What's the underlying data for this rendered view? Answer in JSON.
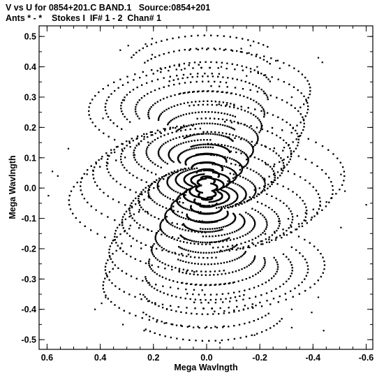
{
  "header": {
    "line1": "V vs U for 0854+201.C BAND.1   Source:0854+201",
    "line2": "Ants * - *    Stokes I  IF# 1 - 2  Chan# 1"
  },
  "chart_data": {
    "type": "scatter",
    "title": "V vs U for 0854+201.C BAND.1   Source:0854+201",
    "subtitle": "Ants * - *    Stokes I  IF# 1 - 2  Chan# 1",
    "xlabel": "Mega Wavlngth",
    "ylabel": "Mega Wavlngth",
    "xlim": [
      0.63,
      -0.625
    ],
    "ylim": [
      -0.532,
      0.535
    ],
    "x_reversed": true,
    "xticks": [
      0.6,
      0.4,
      0.2,
      0.0,
      -0.2,
      -0.4,
      -0.6
    ],
    "xtick_labels": [
      "0.6",
      "0.4",
      "0.2",
      "0.0",
      "-0.2",
      "-0.4",
      "-0.6"
    ],
    "yticks": [
      -0.5,
      -0.4,
      -0.3,
      -0.2,
      -0.1,
      0.0,
      0.1,
      0.2,
      0.3,
      0.4,
      0.5
    ],
    "ytick_labels": [
      "-0.5",
      "-0.4",
      "-0.3",
      "-0.2",
      "-0.1",
      "0.0",
      "0.1",
      "0.2",
      "0.3",
      "0.4",
      "0.5"
    ],
    "grid": false,
    "marker_color": "#000000",
    "series": [
      {
        "x": [
          0.325,
          0.295,
          0.205,
          0.23,
          -0.055,
          -0.13,
          -0.165,
          -0.19,
          -0.42,
          -0.435,
          -0.26,
          -0.275,
          0.52,
          0.56,
          0.58,
          0.595,
          -0.505,
          -0.52,
          -0.6,
          0.395,
          0.42,
          -0.505,
          -0.44,
          0.38,
          0.315,
          0.235,
          -0.05,
          -0.18,
          -0.32,
          -0.395,
          -0.42,
          -0.32,
          0.095,
          0.205,
          0.39,
          0.31,
          0.25,
          0.15,
          -0.15,
          -0.32
        ],
        "y": [
          0.455,
          0.47,
          0.493,
          0.475,
          0.4,
          0.46,
          0.47,
          0.4,
          0.43,
          0.415,
          0.42,
          0.395,
          0.13,
          0.04,
          0.055,
          -0.025,
          0.045,
          -0.01,
          -0.055,
          -0.38,
          -0.4,
          -0.13,
          -0.47,
          -0.36,
          -0.45,
          -0.47,
          -0.51,
          -0.485,
          -0.46,
          -0.41,
          -0.36,
          -0.4,
          0.39,
          0.44,
          0.23,
          0.29,
          -0.35,
          -0.4,
          0.37,
          0.3
        ]
      }
    ]
  }
}
